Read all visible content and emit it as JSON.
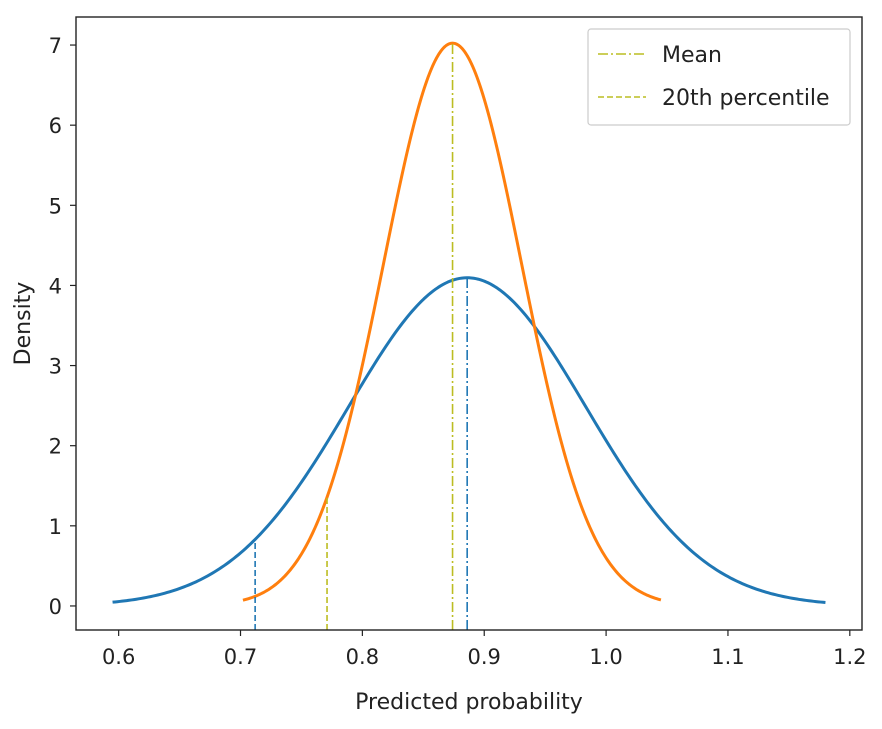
{
  "chart_data": {
    "type": "line",
    "xlabel": "Predicted probability",
    "ylabel": "Density",
    "xlim": [
      0.565,
      1.21
    ],
    "ylim": [
      -0.3,
      7.35
    ],
    "xticks": [
      "0.6",
      "0.7",
      "0.8",
      "0.9",
      "1.0",
      "1.1",
      "1.2"
    ],
    "yticks": [
      "0",
      "1",
      "2",
      "3",
      "4",
      "5",
      "6",
      "7"
    ],
    "grid": false,
    "legend_position": "top-right",
    "legend": [
      {
        "label": "Mean",
        "style": "dashdot",
        "color": "#bcbd22"
      },
      {
        "label": "20th percentile",
        "style": "dashed",
        "color": "#bcbd22"
      }
    ],
    "series": [
      {
        "color": "#1f77b4",
        "distribution": "normal",
        "mean": 0.886,
        "sd": 0.0974,
        "x_range": [
          0.595,
          1.18
        ],
        "mean_line_x": 0.886,
        "percentile20_x": 0.712
      },
      {
        "color": "#ff7f0e",
        "distribution": "normal",
        "mean": 0.874,
        "sd": 0.0568,
        "x_range": [
          0.702,
          1.045
        ],
        "mean_line_x": 0.874,
        "percentile20_x": 0.771
      }
    ]
  }
}
